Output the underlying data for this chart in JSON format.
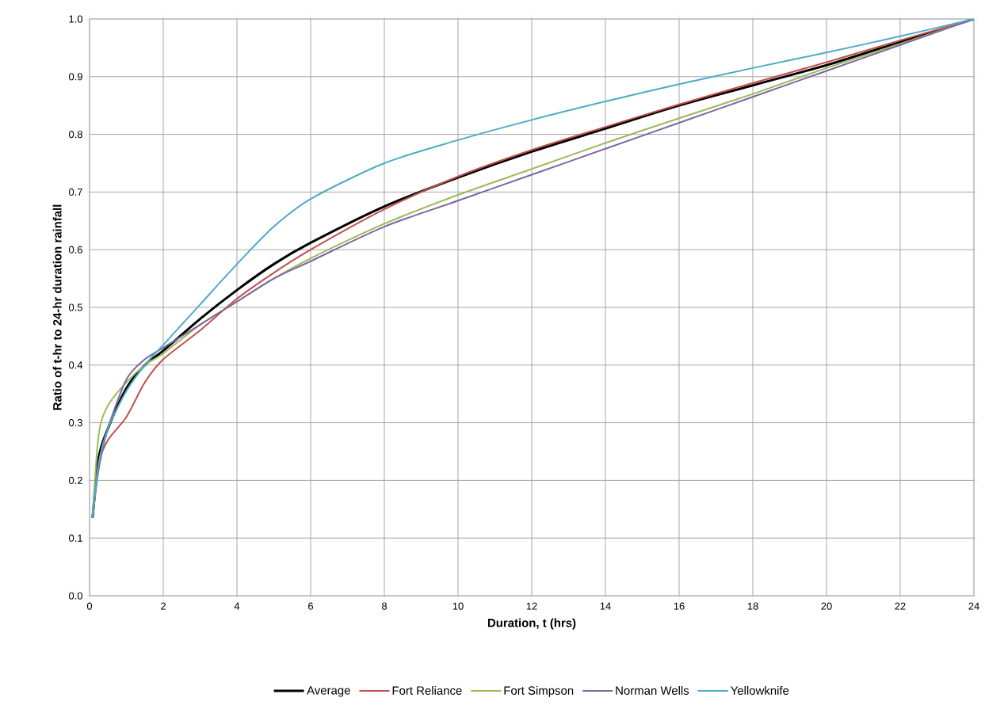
{
  "chart_data": {
    "type": "line",
    "xlabel": "Duration, t (hrs)",
    "ylabel": "Ratio of t-hr to 24-hr duration rainfall",
    "x": [
      0.083,
      0.25,
      0.5,
      1,
      1.5,
      2,
      3,
      4,
      5,
      6,
      8,
      10,
      12,
      14,
      16,
      18,
      20,
      22,
      24
    ],
    "series": [
      {
        "name": "Average",
        "color": "#000000",
        "values": [
          0.135,
          0.24,
          0.29,
          0.36,
          0.4,
          0.425,
          0.48,
          0.53,
          0.575,
          0.612,
          0.675,
          0.725,
          0.77,
          0.81,
          0.85,
          0.885,
          0.92,
          0.96,
          1.0
        ]
      },
      {
        "name": "Fort Reliance",
        "color": "#c0504d",
        "values": [
          0.135,
          0.23,
          0.27,
          0.31,
          0.37,
          0.41,
          0.46,
          0.515,
          0.56,
          0.6,
          0.67,
          0.727,
          0.773,
          0.813,
          0.852,
          0.889,
          0.925,
          0.963,
          1.0
        ]
      },
      {
        "name": "Fort Simpson",
        "color": "#9bbb59",
        "values": [
          0.14,
          0.28,
          0.33,
          0.37,
          0.4,
          0.42,
          0.47,
          0.51,
          0.55,
          0.585,
          0.645,
          0.695,
          0.74,
          0.785,
          0.828,
          0.87,
          0.915,
          0.957,
          1.0
        ]
      },
      {
        "name": "Norman Wells",
        "color": "#8064a2",
        "values": [
          0.135,
          0.22,
          0.29,
          0.375,
          0.41,
          0.43,
          0.47,
          0.51,
          0.55,
          0.58,
          0.64,
          0.685,
          0.73,
          0.775,
          0.82,
          0.865,
          0.91,
          0.955,
          1.0
        ]
      },
      {
        "name": "Yellowknife",
        "color": "#4bacc6",
        "values": [
          0.135,
          0.23,
          0.29,
          0.355,
          0.4,
          0.435,
          0.505,
          0.575,
          0.64,
          0.688,
          0.75,
          0.79,
          0.825,
          0.857,
          0.887,
          0.915,
          0.942,
          0.97,
          1.0
        ]
      }
    ],
    "xlim": [
      0,
      24
    ],
    "xticks": [
      0,
      2,
      4,
      6,
      8,
      10,
      12,
      14,
      16,
      18,
      20,
      22,
      24
    ],
    "ylim": [
      0,
      1
    ],
    "yticks": [
      {
        "value": 0,
        "label": "0.0"
      },
      0.1,
      0.2,
      0.3,
      0.4,
      0.5,
      0.6,
      0.7,
      0.8,
      0.9,
      {
        "value": 1,
        "label": "1.0"
      }
    ],
    "grid": true,
    "legend": "bottom"
  }
}
